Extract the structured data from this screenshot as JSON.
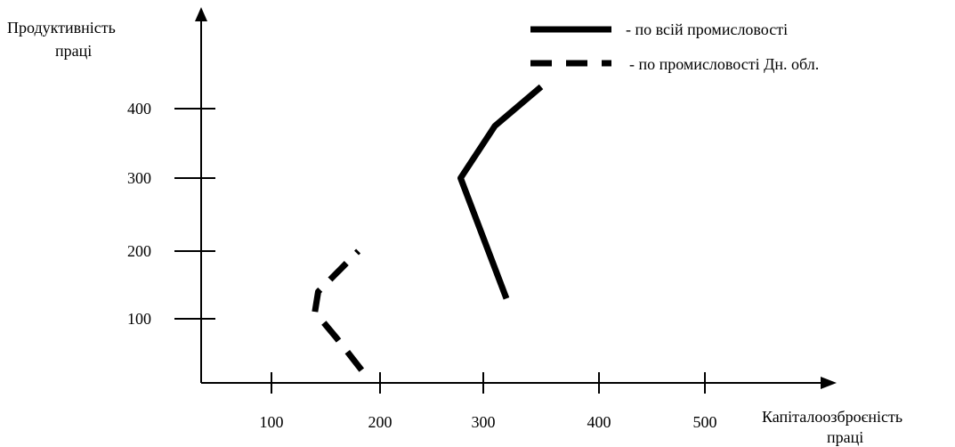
{
  "chart_data": {
    "type": "line",
    "ylabel_lines": [
      "Продуктивність",
      "праці"
    ],
    "xlabel_lines": [
      "Капіталоозброєність",
      "праці"
    ],
    "x_ticks": [
      100,
      200,
      300,
      400,
      500
    ],
    "y_ticks": [
      100,
      200,
      300,
      400
    ],
    "xlim": [
      20,
      540
    ],
    "ylim": [
      0,
      530
    ],
    "grid": false,
    "legend_position": "top-right",
    "series": [
      {
        "name": "- по всій промисловості",
        "style": "solid",
        "color": "#000000",
        "points": [
          [
            320,
            130
          ],
          [
            278,
            300
          ],
          [
            310,
            375
          ],
          [
            350,
            430
          ]
        ]
      },
      {
        "name": "- по промисловості Дн. обл.",
        "style": "dashed",
        "color": "#000000",
        "points": [
          [
            183,
            20
          ],
          [
            160,
            70
          ],
          [
            140,
            110
          ],
          [
            143,
            140
          ],
          [
            180,
            200
          ]
        ]
      }
    ]
  }
}
